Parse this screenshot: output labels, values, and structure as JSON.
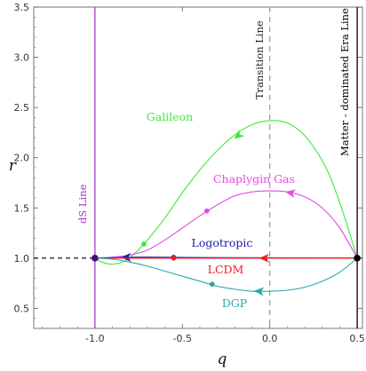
{
  "chart_data": {
    "type": "line",
    "xlabel": "q",
    "ylabel": "r",
    "xlim": [
      -1.35,
      0.53
    ],
    "ylim": [
      0.3,
      3.5
    ],
    "xticks": [
      "-1.0",
      "-0.5",
      "0.0",
      "0.5"
    ],
    "xtick_values": [
      -1.0,
      -0.5,
      0.0,
      0.5
    ],
    "yticks": [
      "0.5",
      "1.0",
      "1.5",
      "2.0",
      "2.5",
      "3.0",
      "3.5"
    ],
    "ytick_values": [
      0.5,
      1.0,
      1.5,
      2.0,
      2.5,
      3.0,
      3.5
    ],
    "reference_lines": {
      "horizontal_r": 1.0,
      "ds_line": {
        "q": -1.0,
        "label": "dS Line",
        "color": "#9b30c8"
      },
      "transition_line": {
        "q": 0.0,
        "label": "Transition Line",
        "color": "#999999"
      },
      "matter_line": {
        "q": 0.5,
        "label": "Matter - dominated Era Line",
        "color": "#000000"
      }
    },
    "series": [
      {
        "name": "Galileon",
        "color": "#3ee83e",
        "points": [
          [
            0.5,
            1.0
          ],
          [
            0.42,
            1.45
          ],
          [
            0.33,
            1.87
          ],
          [
            0.22,
            2.18
          ],
          [
            0.12,
            2.33
          ],
          [
            0.02,
            2.37
          ],
          [
            -0.1,
            2.33
          ],
          [
            -0.22,
            2.2
          ],
          [
            -0.35,
            1.98
          ],
          [
            -0.48,
            1.7
          ],
          [
            -0.6,
            1.4
          ],
          [
            -0.72,
            1.14
          ],
          [
            -0.82,
            0.98
          ],
          [
            -0.9,
            0.94
          ],
          [
            -0.96,
            0.96
          ],
          [
            -1.0,
            1.0
          ]
        ],
        "arrow": [
          -0.18,
          2.22
        ],
        "marker": [
          -0.72,
          1.14
        ]
      },
      {
        "name": "Chaplygin Gas",
        "color": "#e34ae3",
        "points": [
          [
            0.5,
            1.0
          ],
          [
            0.4,
            1.3
          ],
          [
            0.3,
            1.5
          ],
          [
            0.2,
            1.61
          ],
          [
            0.1,
            1.66
          ],
          [
            0.0,
            1.67
          ],
          [
            -0.1,
            1.66
          ],
          [
            -0.2,
            1.62
          ],
          [
            -0.3,
            1.53
          ],
          [
            -0.4,
            1.42
          ],
          [
            -0.5,
            1.3
          ],
          [
            -0.6,
            1.18
          ],
          [
            -0.7,
            1.08
          ],
          [
            -0.8,
            1.03
          ],
          [
            -0.9,
            1.01
          ],
          [
            -1.0,
            1.0
          ]
        ],
        "arrow": [
          0.12,
          1.65
        ],
        "marker": [
          -0.36,
          1.47
        ]
      },
      {
        "name": "Logotropic",
        "color": "#1c1ca8",
        "points": [
          [
            0.5,
            1.0
          ],
          [
            0.0,
            1.003
          ],
          [
            -0.4,
            1.006
          ],
          [
            -0.7,
            1.01
          ],
          [
            -0.9,
            1.005
          ],
          [
            -1.0,
            1.0
          ]
        ],
        "arrow": [
          -0.82,
          1.007
        ],
        "marker": [
          -0.55,
          1.008
        ]
      },
      {
        "name": "LCDM",
        "color": "#ef1f1f",
        "points": [
          [
            0.5,
            1.0
          ],
          [
            -1.0,
            1.0
          ]
        ],
        "arrow": [
          -0.03,
          1.0
        ],
        "marker": [
          -0.55,
          1.0
        ]
      },
      {
        "name": "DGP",
        "color": "#27a8a8",
        "points": [
          [
            0.5,
            1.0
          ],
          [
            0.4,
            0.86
          ],
          [
            0.3,
            0.77
          ],
          [
            0.2,
            0.71
          ],
          [
            0.1,
            0.68
          ],
          [
            0.0,
            0.67
          ],
          [
            -0.1,
            0.67
          ],
          [
            -0.2,
            0.69
          ],
          [
            -0.3,
            0.72
          ],
          [
            -0.4,
            0.77
          ],
          [
            -0.5,
            0.82
          ],
          [
            -0.6,
            0.87
          ],
          [
            -0.7,
            0.92
          ],
          [
            -0.8,
            0.96
          ],
          [
            -0.9,
            0.99
          ],
          [
            -1.0,
            1.0
          ]
        ],
        "arrow": [
          -0.06,
          0.67
        ],
        "marker": [
          -0.33,
          0.74
        ]
      }
    ],
    "start_point": [
      0.5,
      1.0
    ],
    "end_point": [
      -1.0,
      1.0
    ]
  }
}
